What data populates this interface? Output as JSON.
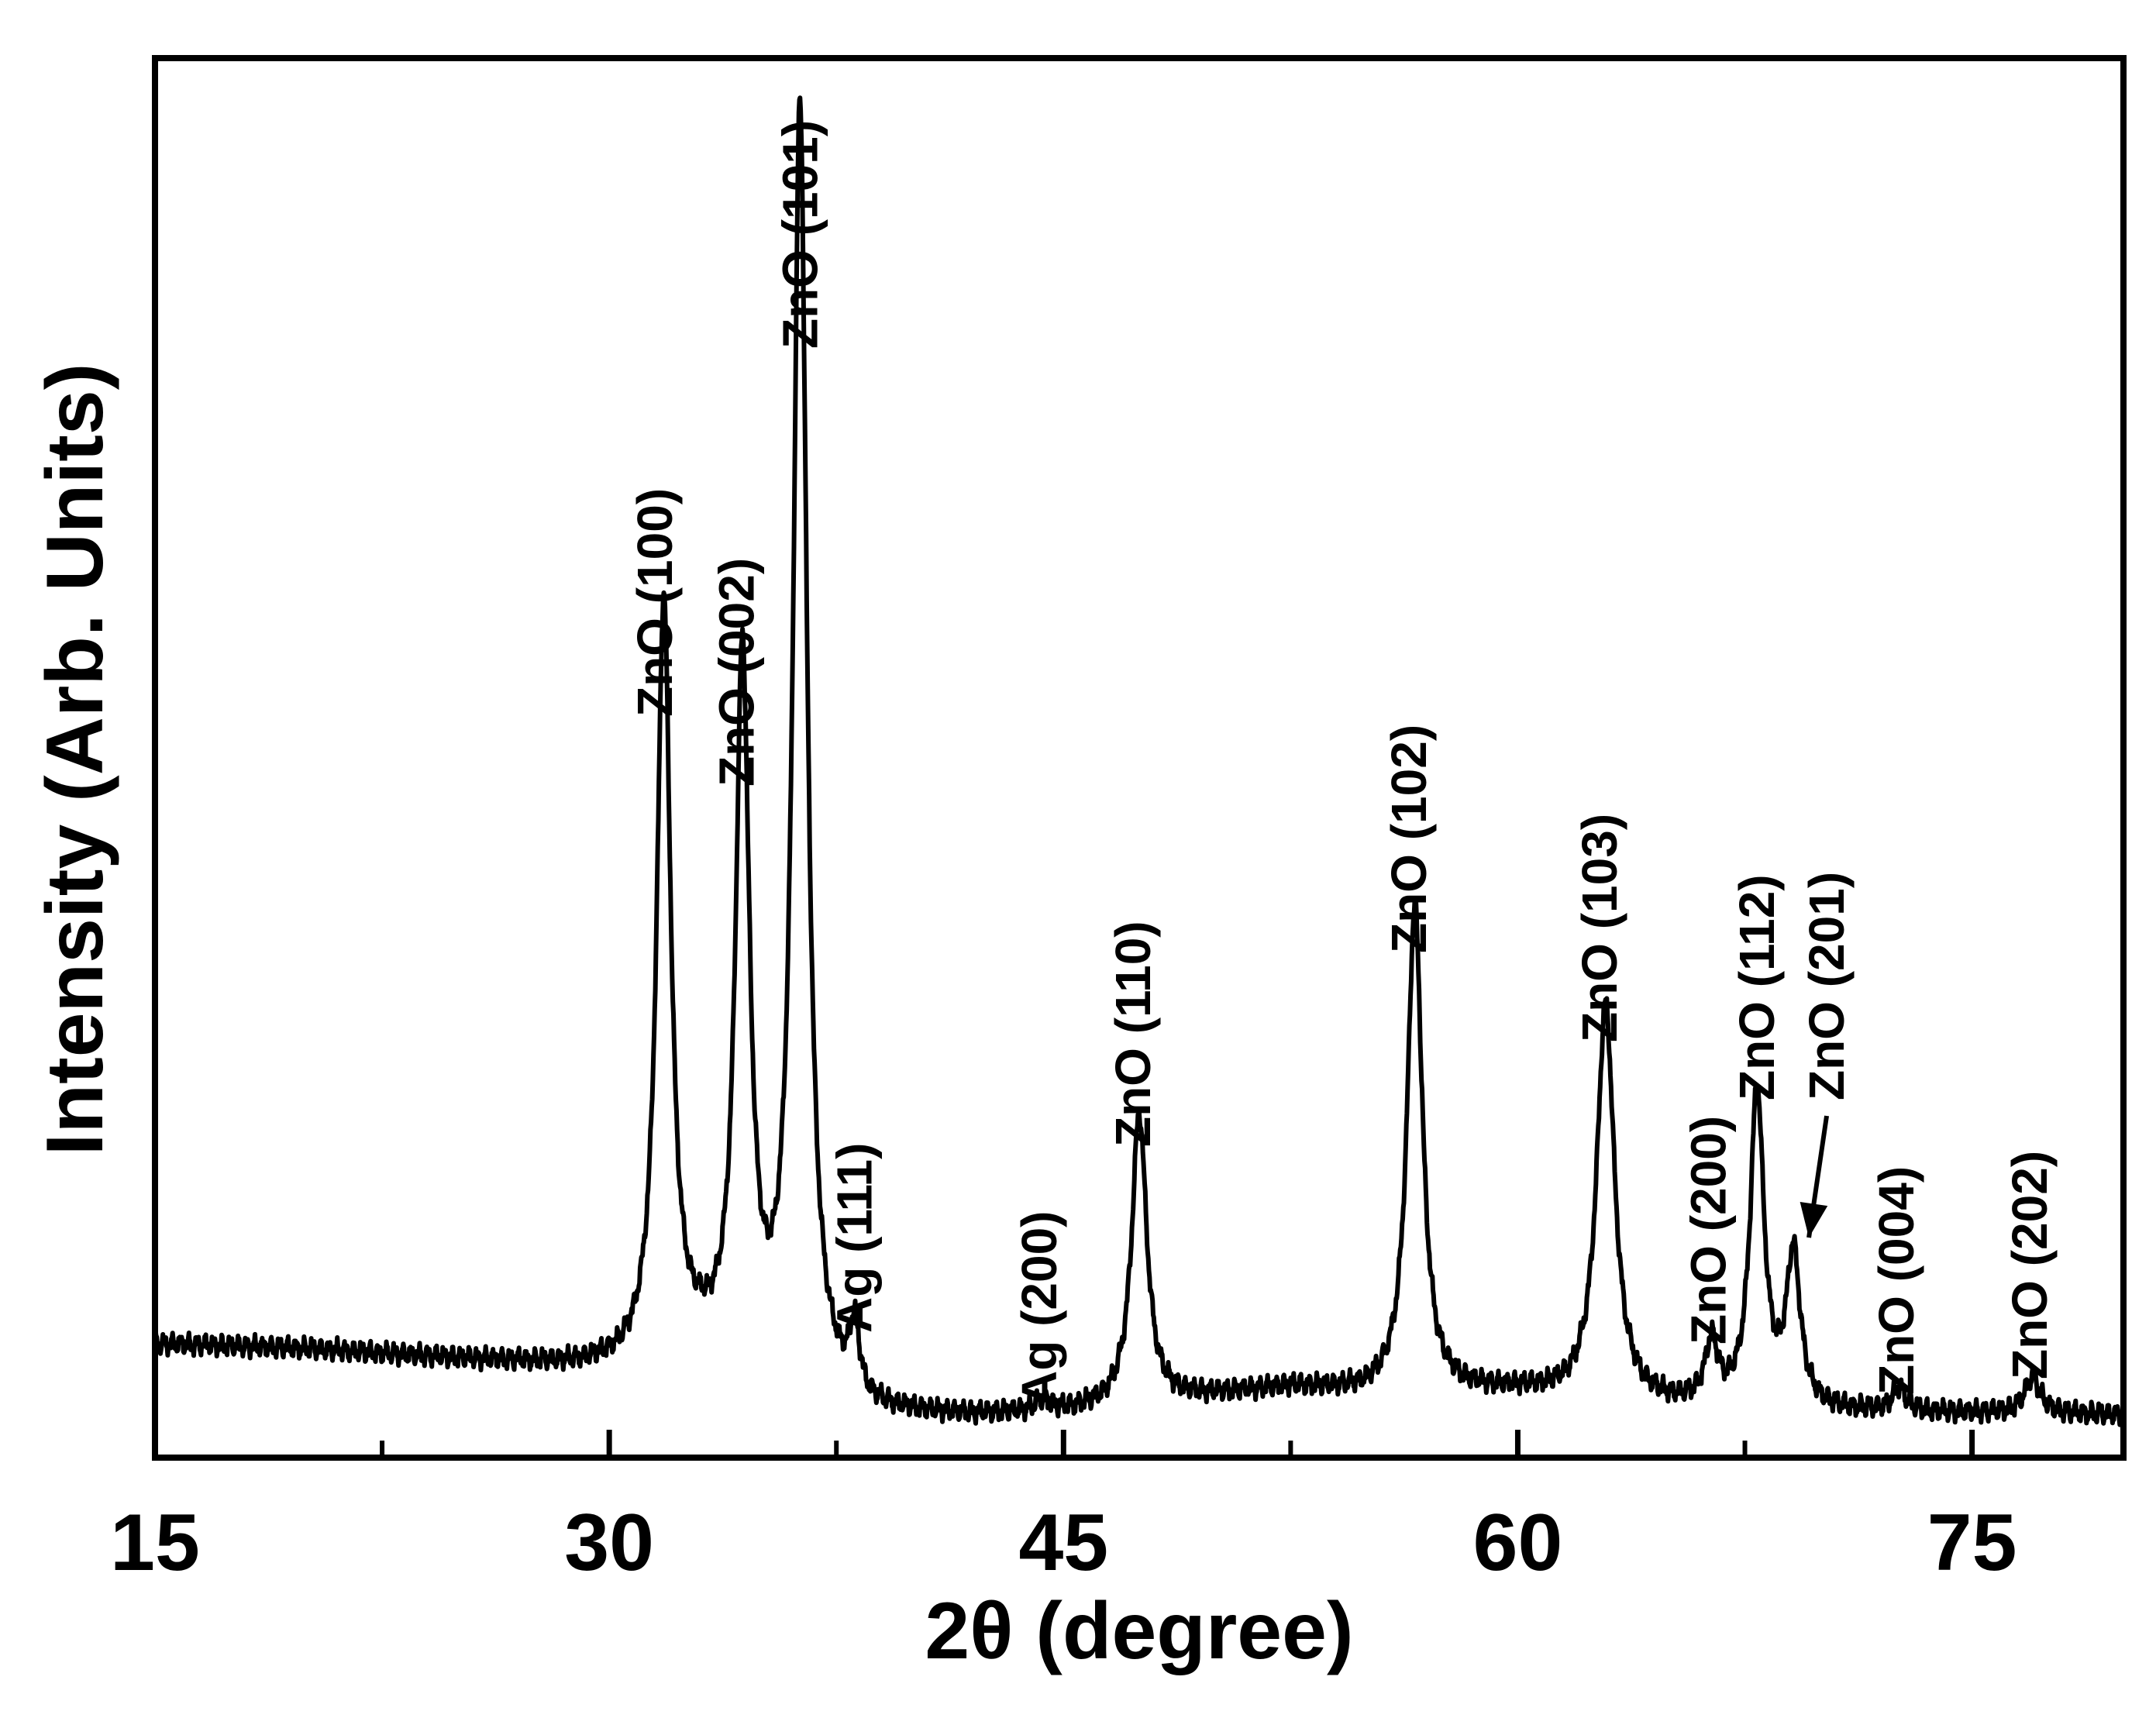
{
  "chart_data": {
    "type": "line",
    "title": "",
    "xlabel": "2θ (degree)",
    "ylabel": "Intensity (Arb. Units)",
    "xlim": [
      15,
      80
    ],
    "ylim": [
      0,
      100
    ],
    "xticks": [
      "15",
      "30",
      "45",
      "60",
      "75"
    ],
    "xtick_values": [
      15,
      30,
      45,
      60,
      75
    ],
    "minor_xticks": [
      22.5,
      37.5,
      52.5,
      67.5
    ],
    "y_tick_labels": false,
    "grid": false,
    "legend": null,
    "line_color": "#000000",
    "peaks": [
      {
        "label": "ZnO (100)",
        "x": 31.8,
        "height": 57.5,
        "fwhm": 0.55
      },
      {
        "label": "ZnO (002)",
        "x": 34.4,
        "height": 53.5,
        "fwhm": 0.55
      },
      {
        "label": "ZnO (101)",
        "x": 36.3,
        "height": 97,
        "fwhm": 0.55
      },
      {
        "label": "Ag (111)",
        "x": 38.1,
        "height": 5,
        "fwhm": 0.4
      },
      {
        "label": "Ag (200)",
        "x": 44.3,
        "height": 0.8,
        "fwhm": 0.6
      },
      {
        "label": "ZnO (110)",
        "x": 47.5,
        "height": 22,
        "fwhm": 0.6
      },
      {
        "label": "ZnO (102)",
        "x": 56.6,
        "height": 37,
        "fwhm": 0.6
      },
      {
        "label": "ZnO (103)",
        "x": 62.9,
        "height": 30,
        "fwhm": 0.7
      },
      {
        "label": "ZnO (200)",
        "x": 66.4,
        "height": 4.5,
        "fwhm": 0.5
      },
      {
        "label": "ZnO (112)",
        "x": 67.9,
        "height": 24,
        "fwhm": 0.55
      },
      {
        "label": "ZnO (201)",
        "x": 69.1,
        "height": 11.5,
        "fwhm": 0.55
      },
      {
        "label": "ZnO (004)",
        "x": 72.6,
        "height": 1.8,
        "fwhm": 0.5
      },
      {
        "label": "ZnO (202)",
        "x": 77.0,
        "height": 2.8,
        "fwhm": 0.6
      }
    ],
    "baseline": [
      [
        15,
        7
      ],
      [
        20,
        6.6
      ],
      [
        25,
        5.8
      ],
      [
        29,
        5.2
      ],
      [
        30.5,
        5.2
      ],
      [
        33,
        6
      ],
      [
        35.2,
        4
      ],
      [
        37.5,
        2.4
      ],
      [
        38.5,
        1.5
      ],
      [
        42,
        1.4
      ],
      [
        45,
        1.7
      ],
      [
        50,
        3
      ],
      [
        52.5,
        3.6
      ],
      [
        55,
        3.2
      ],
      [
        60,
        3.3
      ],
      [
        65,
        2.2
      ],
      [
        70,
        1.8
      ],
      [
        75,
        1.7
      ],
      [
        80,
        1.6
      ]
    ]
  }
}
